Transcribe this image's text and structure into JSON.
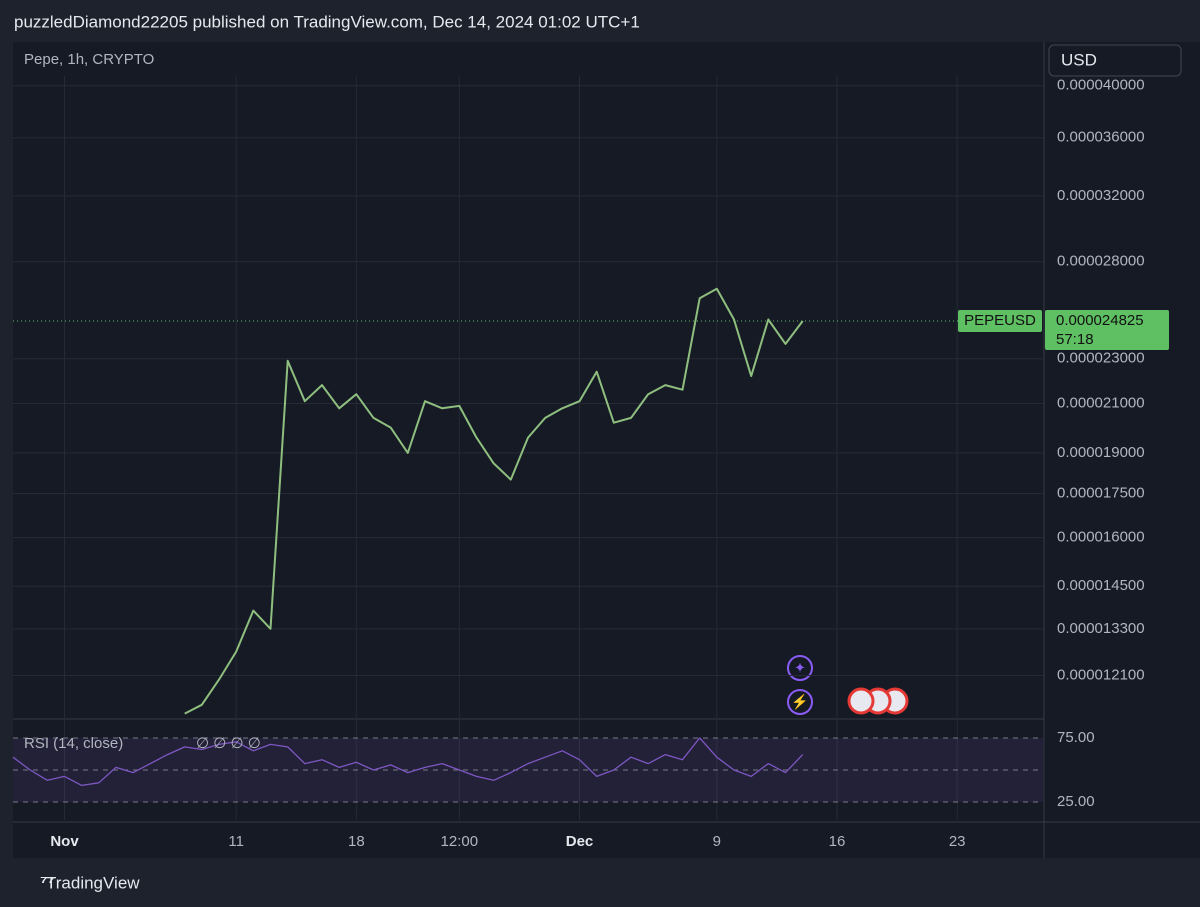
{
  "header": {
    "byline": "puzzledDiamond22205 published on TradingView.com, Dec 14, 2024 01:02 UTC+1",
    "currency": "USD",
    "footer": "TradingView"
  },
  "chart_data": [
    {
      "type": "line",
      "title": "Pepe, 1h, CRYPTO",
      "log_scale": true,
      "grid": true,
      "categories": [
        null,
        null,
        null,
        "Nov",
        null,
        null,
        null,
        null,
        null,
        null,
        null,
        null,
        null,
        "11",
        null,
        null,
        null,
        null,
        null,
        null,
        "18",
        null,
        null,
        null,
        null,
        null,
        "12:00",
        null,
        null,
        null,
        null,
        null,
        null,
        "Dec",
        null,
        null,
        null,
        null,
        null,
        null,
        null,
        "9",
        null,
        null,
        null,
        null,
        null,
        null,
        "16",
        null,
        null,
        null,
        null,
        null,
        null,
        "23",
        null,
        null,
        null,
        null
      ],
      "series": [
        {
          "name": "PEPEUSD",
          "color": "#8fbf7f",
          "values": [
            null,
            null,
            null,
            null,
            null,
            null,
            null,
            null,
            null,
            null,
            1.12e-05,
            1.14e-05,
            1.2e-05,
            1.27e-05,
            1.38e-05,
            1.33e-05,
            2.29e-05,
            2.11e-05,
            2.18e-05,
            2.08e-05,
            2.14e-05,
            2.04e-05,
            2e-05,
            1.9e-05,
            2.11e-05,
            2.08e-05,
            2.09e-05,
            1.96e-05,
            1.86e-05,
            1.8e-05,
            1.96e-05,
            2.04e-05,
            2.08e-05,
            2.11e-05,
            2.24e-05,
            2.02e-05,
            2.04e-05,
            2.14e-05,
            2.18e-05,
            2.16e-05,
            2.6e-05,
            2.65e-05,
            2.49e-05,
            2.22e-05,
            2.49e-05,
            2.37e-05,
            2.4825e-05,
            null,
            null,
            null,
            null,
            null,
            null,
            null,
            null,
            null,
            null,
            null,
            null,
            null
          ]
        }
      ],
      "last_value": 2.4825e-05,
      "last_color": "#5fbf63",
      "countdown": "57:18",
      "ylim": [
        1.11e-05,
        4.08e-05
      ],
      "yticks": [
        {
          "value": 4e-05,
          "label": "0.000040000"
        },
        {
          "value": 3.6e-05,
          "label": "0.000036000"
        },
        {
          "value": 3.2e-05,
          "label": "0.000032000"
        },
        {
          "value": 2.8e-05,
          "label": "0.000028000"
        },
        {
          "value": 2.3e-05,
          "label": "0.000023000"
        },
        {
          "value": 2.1e-05,
          "label": "0.000021000"
        },
        {
          "value": 1.9e-05,
          "label": "0.000019000"
        },
        {
          "value": 1.75e-05,
          "label": "0.000017500"
        },
        {
          "value": 1.6e-05,
          "label": "0.000016000"
        },
        {
          "value": 1.45e-05,
          "label": "0.000014500"
        },
        {
          "value": 1.33e-05,
          "label": "0.000013300"
        },
        {
          "value": 1.21e-05,
          "label": "0.000012100"
        }
      ]
    },
    {
      "type": "line",
      "status": "∅ ∅ ∅ ∅",
      "series": [
        {
          "name": "RSI (14, close)",
          "color": "#7e57c2",
          "values": [
            60,
            50,
            42,
            45,
            38,
            40,
            52,
            48,
            55,
            62,
            68,
            66,
            70,
            72,
            65,
            70,
            68,
            55,
            58,
            52,
            56,
            50,
            54,
            48,
            52,
            55,
            50,
            45,
            42,
            48,
            55,
            60,
            65,
            58,
            45,
            50,
            60,
            55,
            62,
            58,
            75,
            60,
            50,
            45,
            55,
            48,
            62,
            null,
            null,
            null,
            null,
            null,
            null,
            null,
            null,
            null,
            null,
            null,
            null,
            null
          ]
        }
      ],
      "levels": [
        75,
        50,
        25
      ],
      "ylim": [
        11,
        89
      ],
      "yticks": [
        {
          "value": 75,
          "label": "75.00"
        },
        {
          "value": 25,
          "label": "25.00"
        }
      ]
    }
  ]
}
